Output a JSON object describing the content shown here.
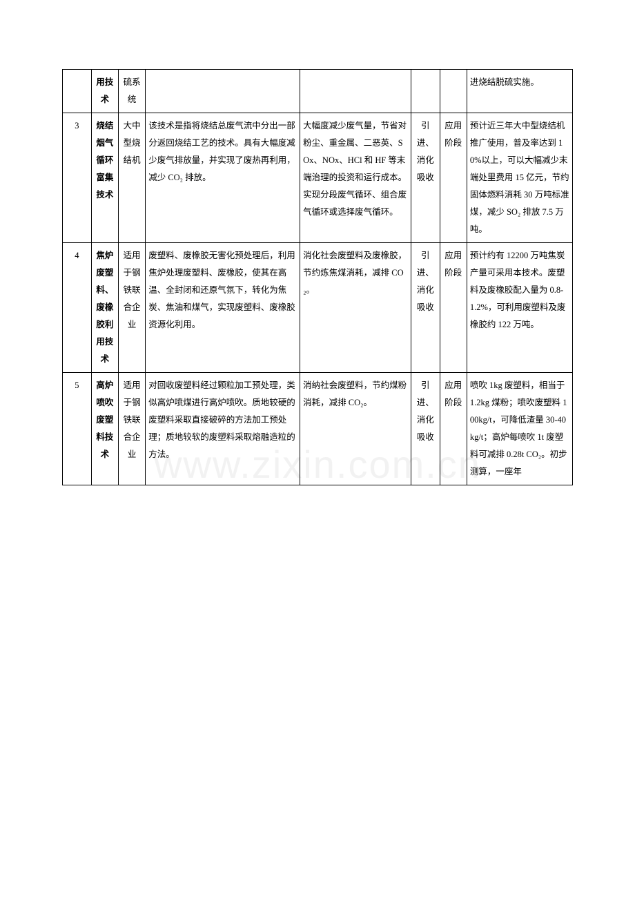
{
  "watermark": "www.zixin.com.cn",
  "rows": [
    {
      "num": "",
      "name": "用技术",
      "scope": "硫系统",
      "desc": "",
      "effect": "",
      "source": "",
      "stage": "",
      "forecast": "进烧结脱硫实施。"
    },
    {
      "num": "3",
      "name": "烧结烟气循环富集技术",
      "scope": "大中型烧结机",
      "desc": "该技术是指将烧结总废气流中分出一部分返回烧结工艺的技术。具有大幅度减少废气排放量，并实现了废热再利用，减少 CO₂ 排放。",
      "effect": "大幅度减少废气量，节省对粉尘、重金属、二恶英、SOx、NOx、HCl 和 HF 等末端治理的投资和运行成本。实现分段废气循环、组合废气循环或选择废气循环。",
      "source": "引进、消化吸收",
      "stage": "应用阶段",
      "forecast": "预计近三年大中型烧结机推广使用，普及率达到 10%以上，可以大幅减少末端处里费用 15 亿元，节约固体燃料消耗 30 万吨标准煤，减少 SO₂ 排放 7.5 万吨。"
    },
    {
      "num": "4",
      "name": "焦炉废塑料、废橡胶利用技术",
      "scope": "适用于钢铁联合企业",
      "desc": "废塑料、废橡胶无害化预处理后，利用焦炉处理废塑料、废橡胶，使其在高温、全封闭和还原气氛下，转化为焦炭、焦油和煤气，实现废塑料、废橡胶资源化利用。",
      "effect": "消化社会废塑料及废橡胶，节约炼焦煤消耗，减排 CO₂。",
      "source": "引进、消化吸收",
      "stage": "应用阶段",
      "forecast": "预计约有 12200 万吨焦炭产量可采用本技术。废塑料及废橡胶配入量为 0.8-1.2%，可利用废塑料及废橡胶约 122 万吨。"
    },
    {
      "num": "5",
      "name": "高炉喷吹废塑料技术",
      "scope": "适用于钢铁联合企业",
      "desc": "对回收废塑料经过颗粒加工预处理，类似高炉喷煤进行高炉喷吹。质地较硬的废塑料采取直接破碎的方法加工预处理；质地较软的废塑料采取熔融造粒的方法。",
      "effect": "消纳社会废塑料，节约煤粉消耗，减排 CO₂。",
      "source": "引进、消化吸收",
      "stage": "应用阶段",
      "forecast": "喷吹 1kg 废塑料，相当于 1.2kg 煤粉；喷吹废塑料 100kg/t，可降低渣量 30-40kg/t；高炉每喷吹 1t 废塑料可减排 0.28t CO₂。初步测算，一座年"
    }
  ]
}
